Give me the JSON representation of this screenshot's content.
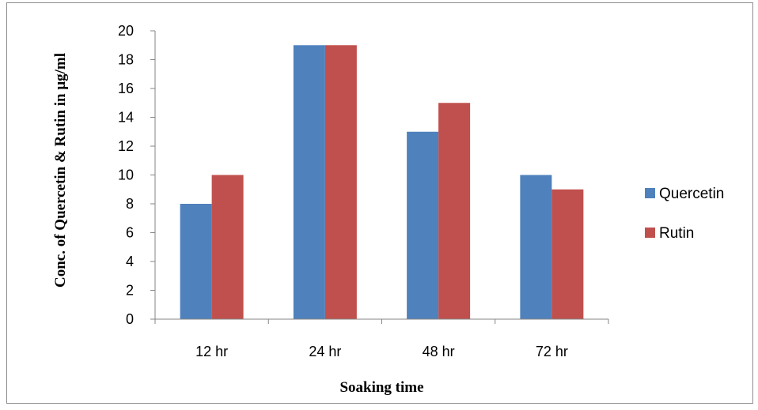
{
  "chart_data": {
    "type": "bar",
    "categories": [
      "12 hr",
      "24 hr",
      "48 hr",
      "72 hr"
    ],
    "series": [
      {
        "name": "Quercetin",
        "values": [
          8,
          19,
          13,
          10
        ],
        "color": "#4f81bd"
      },
      {
        "name": "Rutin",
        "values": [
          10,
          19,
          15,
          9
        ],
        "color": "#c0504d"
      }
    ],
    "xlabel": "Soaking time",
    "ylabel": "Conc. of Quercetin & Rutin in μg/ml",
    "ylim": [
      0,
      20
    ],
    "yticks": [
      0,
      2,
      4,
      6,
      8,
      10,
      12,
      14,
      16,
      18,
      20
    ],
    "grid": false,
    "legend_position": "right"
  }
}
